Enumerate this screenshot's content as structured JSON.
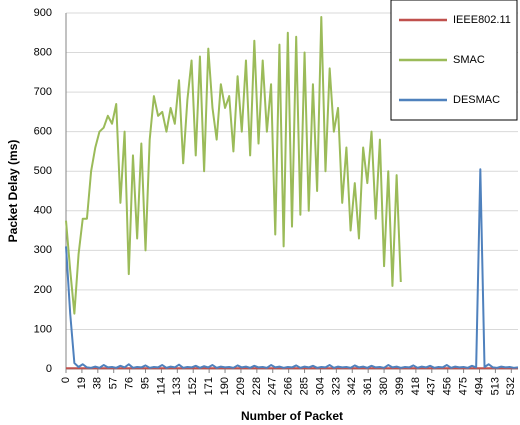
{
  "chart_data": {
    "type": "line",
    "xlabel": "Number of Packet",
    "ylabel": "Packet Delay (ms)",
    "x": [
      0,
      5,
      10,
      15,
      20,
      25,
      30,
      35,
      40,
      45,
      50,
      55,
      60,
      65,
      70,
      75,
      80,
      85,
      90,
      95,
      100,
      105,
      110,
      115,
      120,
      125,
      130,
      135,
      140,
      145,
      150,
      155,
      160,
      165,
      170,
      175,
      180,
      185,
      190,
      195,
      200,
      205,
      210,
      215,
      220,
      225,
      230,
      235,
      240,
      245,
      250,
      255,
      260,
      265,
      270,
      275,
      280,
      285,
      290,
      295,
      300,
      305,
      310,
      315,
      320,
      325,
      330,
      335,
      340,
      345,
      350,
      355,
      360,
      365,
      370,
      375,
      380,
      385,
      390,
      395,
      400,
      405,
      410,
      415,
      420,
      425,
      430,
      435,
      440,
      445,
      450,
      455,
      460,
      465,
      470,
      475,
      480,
      485,
      490,
      495,
      500,
      505,
      510,
      515,
      520,
      525,
      530,
      535,
      540
    ],
    "series": [
      {
        "name": "IEEE802.11",
        "color": "#c0504d",
        "values": [
          2,
          2,
          2,
          2,
          2,
          2,
          2,
          2,
          2,
          2,
          2,
          2,
          2,
          2,
          2,
          2,
          2,
          2,
          2,
          2,
          2,
          2,
          2,
          2,
          2,
          2,
          2,
          2,
          2,
          2,
          2,
          2,
          2,
          2,
          2,
          2,
          2,
          2,
          2,
          2,
          2,
          2,
          2,
          2,
          2,
          2,
          2,
          2,
          2,
          2,
          2,
          2,
          2,
          2,
          2,
          2,
          2,
          2,
          2,
          2,
          2,
          2,
          2,
          2,
          2,
          2,
          2,
          2,
          2,
          2,
          2,
          2,
          2,
          2,
          2,
          2,
          2,
          2,
          2,
          2,
          2,
          2,
          2,
          2,
          2,
          2,
          2,
          2,
          2,
          2,
          2,
          2,
          2,
          2,
          2,
          2,
          2,
          2,
          2,
          2,
          2,
          2,
          2,
          2,
          2,
          2,
          2,
          2,
          2
        ]
      },
      {
        "name": "SMAC",
        "color": "#9bbb59",
        "values": [
          375,
          250,
          140,
          290,
          380,
          380,
          500,
          560,
          600,
          610,
          640,
          620,
          670,
          420,
          600,
          240,
          540,
          330,
          570,
          300,
          580,
          690,
          640,
          650,
          600,
          660,
          620,
          730,
          520,
          680,
          780,
          540,
          790,
          500,
          810,
          660,
          580,
          720,
          660,
          690,
          550,
          740,
          600,
          780,
          540,
          830,
          570,
          780,
          600,
          720,
          340,
          820,
          310,
          850,
          360,
          840,
          390,
          800,
          400,
          720,
          450,
          890,
          500,
          760,
          600,
          660,
          420,
          560,
          350,
          470,
          330,
          560,
          470,
          600,
          380,
          580,
          260,
          500,
          210,
          490,
          220,
          null,
          null,
          null,
          null,
          null,
          null,
          null,
          null,
          null,
          null,
          null,
          null,
          null,
          null,
          null,
          null,
          null,
          null,
          null,
          null,
          null,
          null,
          null,
          null,
          null,
          null,
          null,
          null
        ]
      },
      {
        "name": "DESMAC",
        "color": "#4f81bd",
        "values": [
          310,
          140,
          15,
          5,
          12,
          4,
          3,
          6,
          3,
          10,
          4,
          5,
          3,
          8,
          4,
          12,
          3,
          5,
          4,
          9,
          3,
          5,
          4,
          10,
          3,
          6,
          4,
          11,
          3,
          5,
          4,
          8,
          3,
          7,
          4,
          10,
          3,
          6,
          4,
          5,
          3,
          9,
          4,
          6,
          3,
          8,
          4,
          5,
          3,
          10,
          4,
          6,
          3,
          5,
          4,
          9,
          3,
          6,
          4,
          8,
          3,
          5,
          4,
          10,
          3,
          6,
          4,
          5,
          3,
          9,
          4,
          6,
          3,
          8,
          4,
          5,
          3,
          10,
          4,
          6,
          3,
          5,
          4,
          9,
          3,
          6,
          4,
          8,
          3,
          5,
          4,
          10,
          3,
          6,
          4,
          5,
          3,
          8,
          4,
          505,
          5,
          12,
          4,
          3,
          6,
          4,
          5,
          3,
          4
        ]
      }
    ],
    "xlim": [
      0,
      540
    ],
    "xticks": [
      0,
      19,
      38,
      57,
      76,
      95,
      114,
      133,
      152,
      171,
      190,
      209,
      228,
      247,
      266,
      285,
      304,
      323,
      342,
      361,
      380,
      399,
      418,
      437,
      456,
      475,
      494,
      513,
      532
    ],
    "ylim": [
      0,
      900
    ],
    "yticks": [
      0,
      100,
      200,
      300,
      400,
      500,
      600,
      700,
      800,
      900
    ],
    "grid": true,
    "legend": "top-right"
  }
}
